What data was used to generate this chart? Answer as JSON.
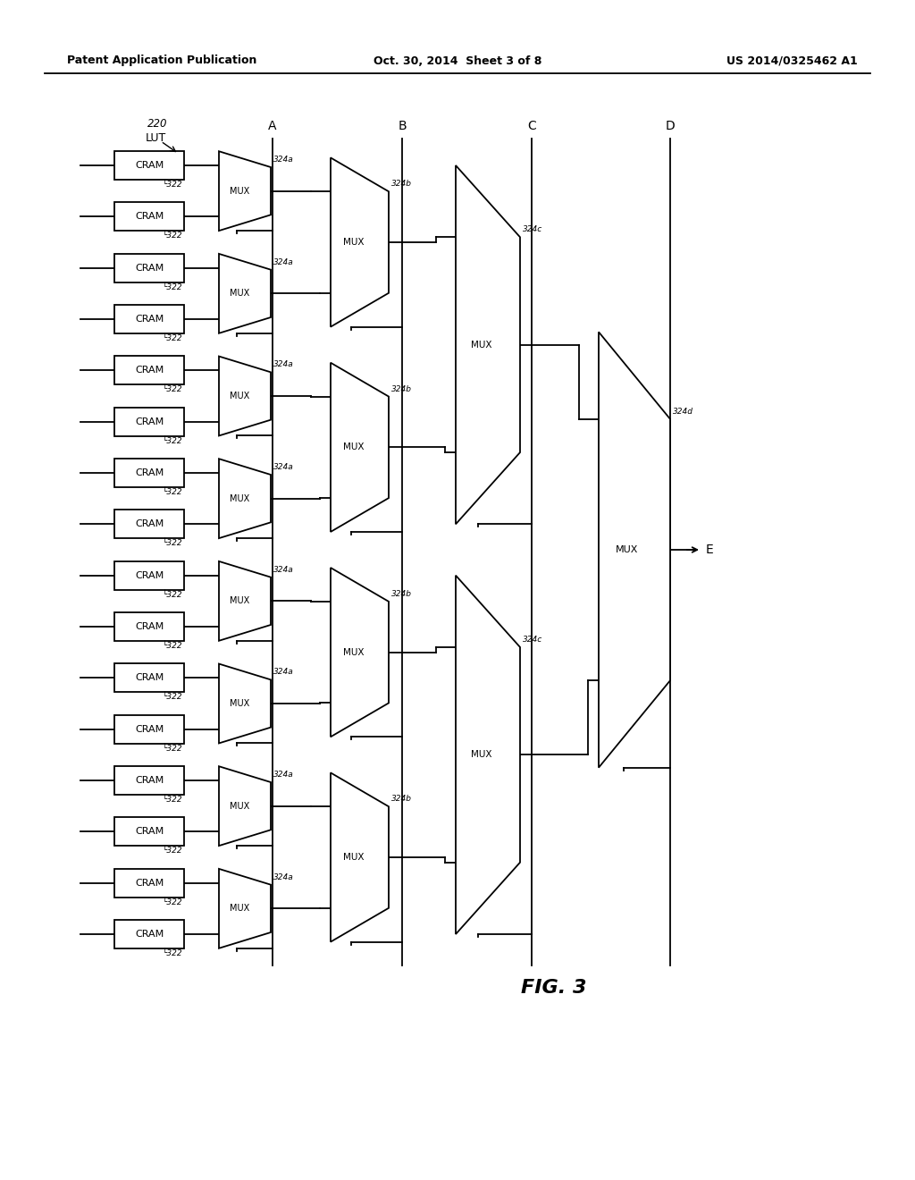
{
  "title_left": "Patent Application Publication",
  "title_mid": "Oct. 30, 2014  Sheet 3 of 8",
  "title_right": "US 2014/0325462 A1",
  "fig_label": "FIG. 3",
  "bg_color": "#ffffff",
  "line_color": "#000000",
  "lut_label": "220",
  "lut_sublabel": "LUT",
  "col_A_label": "A",
  "col_B_label": "B",
  "col_C_label": "C",
  "col_D_label": "D",
  "output_label": "E",
  "mux_label": "MUX",
  "cram_label": "CRAM",
  "ref_322": "322",
  "ref_324a": "324a",
  "ref_324b": "324b",
  "ref_324c": "324c",
  "ref_324d": "324d"
}
